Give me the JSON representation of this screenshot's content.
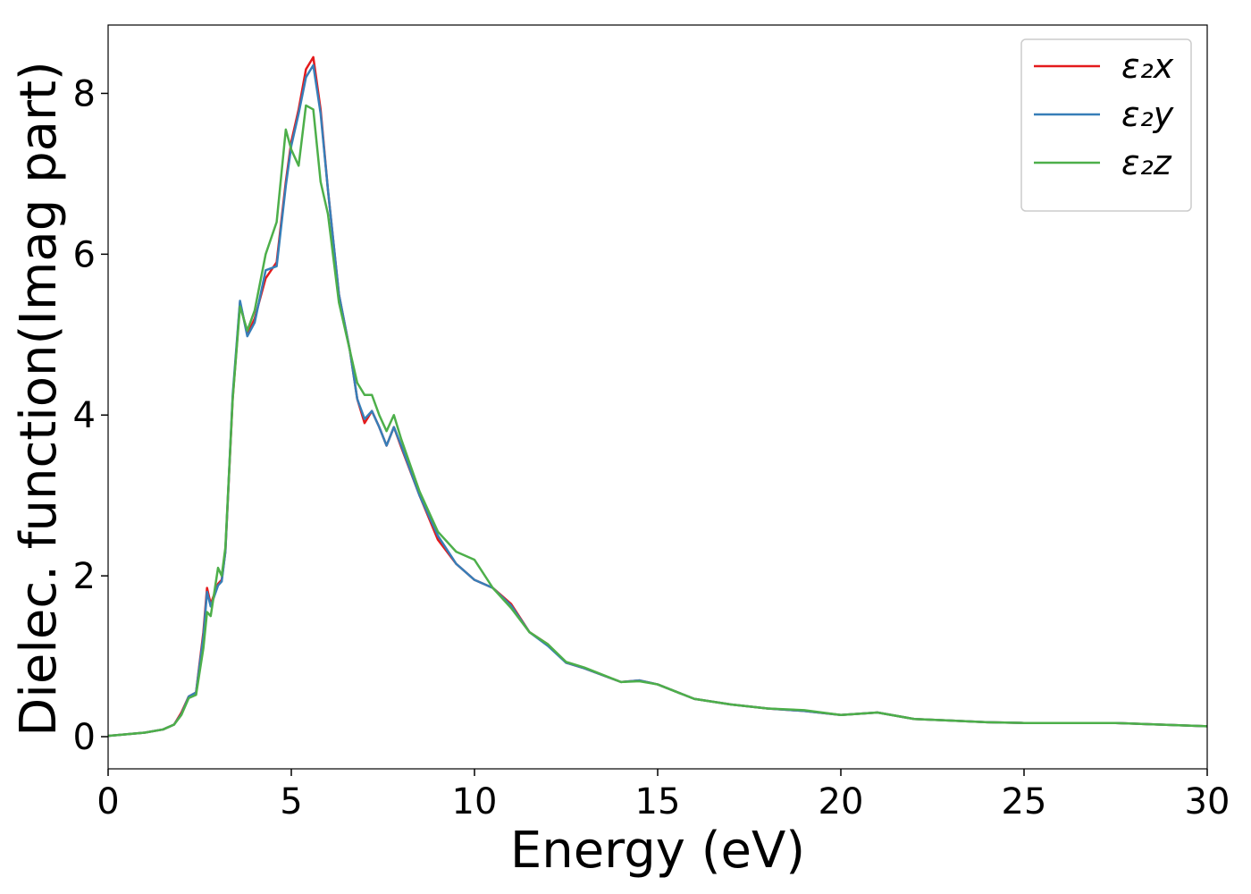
{
  "chart_data": {
    "type": "line",
    "xlabel": "Energy (eV)",
    "ylabel": "Dielec. function(Imag part)",
    "x": [
      0,
      1,
      1.5,
      1.8,
      2,
      2.2,
      2.4,
      2.6,
      2.7,
      2.8,
      3,
      3.1,
      3.2,
      3.4,
      3.6,
      3.8,
      4,
      4.3,
      4.6,
      4.85,
      5,
      5.2,
      5.4,
      5.6,
      5.8,
      6,
      6.3,
      6.6,
      6.8,
      7,
      7.2,
      7.4,
      7.6,
      7.8,
      8,
      8.5,
      9,
      9.5,
      10,
      10.5,
      11,
      11.5,
      12,
      12.5,
      13,
      14,
      14.5,
      15,
      16,
      17,
      18,
      19,
      20,
      21,
      22,
      23,
      24,
      25,
      27.5,
      30
    ],
    "series": [
      {
        "name": "ε₂x",
        "color": "#e41a1c",
        "values": [
          0.01,
          0.05,
          0.09,
          0.15,
          0.3,
          0.5,
          0.55,
          1.3,
          1.85,
          1.65,
          1.9,
          1.95,
          2.3,
          4.2,
          5.4,
          5.0,
          5.2,
          5.7,
          5.9,
          6.9,
          7.4,
          7.8,
          8.3,
          8.45,
          7.8,
          6.8,
          5.5,
          4.8,
          4.2,
          3.9,
          4.05,
          3.85,
          3.62,
          3.85,
          3.6,
          3.0,
          2.45,
          2.15,
          1.95,
          1.85,
          1.65,
          1.3,
          1.15,
          0.92,
          0.85,
          0.68,
          0.7,
          0.65,
          0.47,
          0.4,
          0.35,
          0.32,
          0.27,
          0.3,
          0.22,
          0.2,
          0.18,
          0.17,
          0.17,
          0.13
        ]
      },
      {
        "name": "ε₂y",
        "color": "#377eb8",
        "values": [
          0.01,
          0.05,
          0.09,
          0.15,
          0.28,
          0.5,
          0.55,
          1.25,
          1.8,
          1.62,
          1.88,
          1.93,
          2.3,
          4.25,
          5.42,
          4.98,
          5.15,
          5.8,
          5.85,
          6.85,
          7.35,
          7.75,
          8.2,
          8.35,
          7.75,
          6.8,
          5.5,
          4.8,
          4.2,
          3.95,
          4.05,
          3.85,
          3.62,
          3.85,
          3.62,
          3.0,
          2.5,
          2.15,
          1.95,
          1.85,
          1.63,
          1.3,
          1.13,
          0.92,
          0.85,
          0.68,
          0.7,
          0.65,
          0.47,
          0.4,
          0.35,
          0.32,
          0.27,
          0.3,
          0.22,
          0.2,
          0.18,
          0.17,
          0.17,
          0.13
        ]
      },
      {
        "name": "ε₂z",
        "color": "#4daf4a",
        "values": [
          0.01,
          0.05,
          0.09,
          0.15,
          0.27,
          0.48,
          0.52,
          1.1,
          1.55,
          1.5,
          2.1,
          2.0,
          2.35,
          4.2,
          5.35,
          5.05,
          5.3,
          6.0,
          6.4,
          7.55,
          7.3,
          7.1,
          7.85,
          7.8,
          6.9,
          6.5,
          5.4,
          4.8,
          4.4,
          4.25,
          4.25,
          4.0,
          3.8,
          4.0,
          3.7,
          3.05,
          2.55,
          2.3,
          2.2,
          1.85,
          1.6,
          1.3,
          1.15,
          0.93,
          0.86,
          0.68,
          0.69,
          0.65,
          0.47,
          0.4,
          0.35,
          0.33,
          0.27,
          0.3,
          0.22,
          0.2,
          0.18,
          0.17,
          0.17,
          0.13
        ]
      }
    ],
    "xlim": [
      0,
      30
    ],
    "xticks": [
      0,
      5,
      10,
      15,
      20,
      25,
      30
    ],
    "ylim": [
      -0.4,
      8.85
    ],
    "yticks": [
      0,
      2,
      4,
      6,
      8
    ],
    "legend": "upper right"
  }
}
